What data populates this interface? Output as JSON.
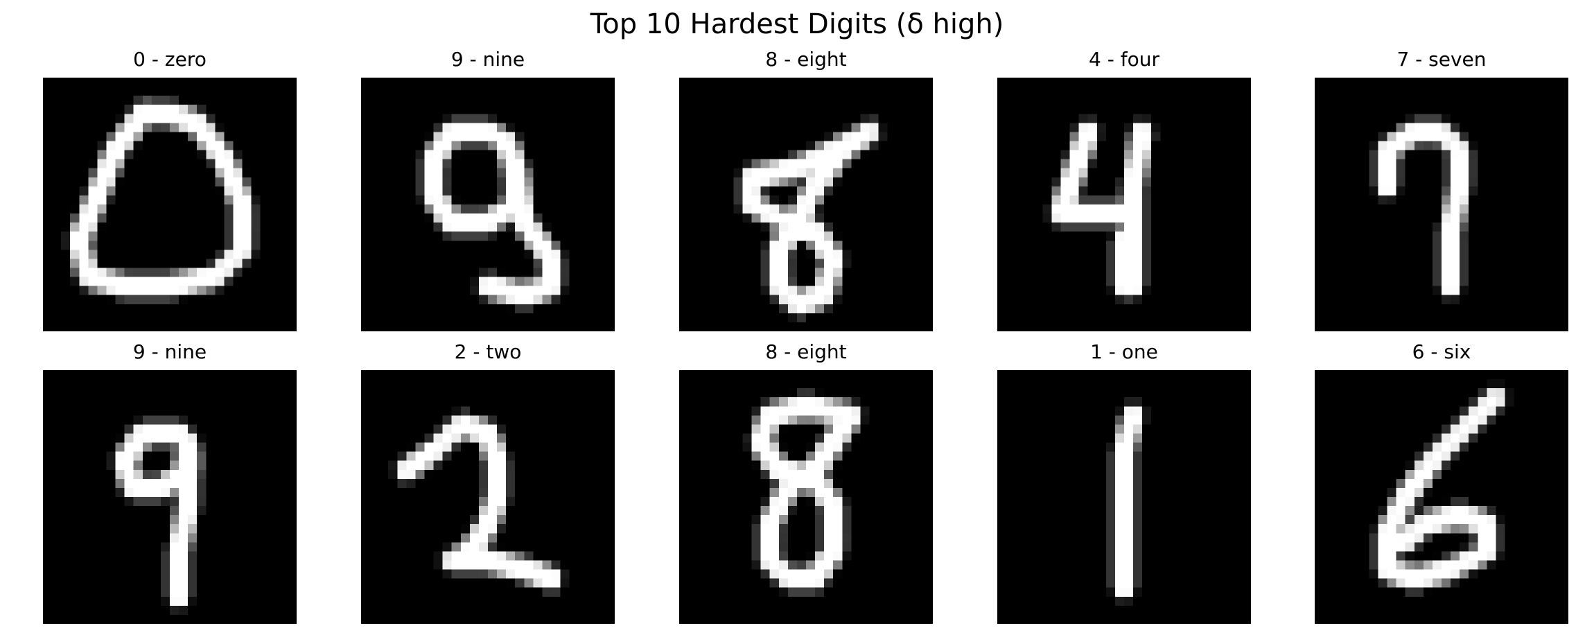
{
  "figure": {
    "title": "Top 10 Hardest Digits (δ high)"
  },
  "panels": [
    {
      "label": "0 - zero",
      "digit": "0"
    },
    {
      "label": "9 - nine",
      "digit": "9"
    },
    {
      "label": "8 - eight",
      "digit": "8"
    },
    {
      "label": "4 - four",
      "digit": "4"
    },
    {
      "label": "7 - seven",
      "digit": "7"
    },
    {
      "label": "9 - nine",
      "digit": "9"
    },
    {
      "label": "2 - two",
      "digit": "2"
    },
    {
      "label": "8 - eight",
      "digit": "8"
    },
    {
      "label": "1 - one",
      "digit": "1"
    },
    {
      "label": "6 - six",
      "digit": "6"
    }
  ]
}
